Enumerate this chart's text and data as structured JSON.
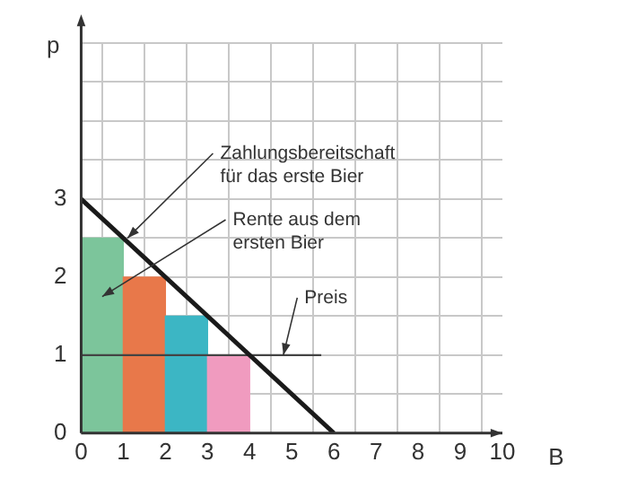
{
  "chart_data": {
    "type": "bar",
    "xlabel": "B",
    "ylabel": "p",
    "xlim": [
      0,
      10
    ],
    "xticks": [
      0,
      1,
      2,
      3,
      4,
      5,
      6,
      7,
      8,
      9,
      10
    ],
    "ylim": [
      0,
      5
    ],
    "yticks": [
      0,
      {
        "value": 0.5,
        "label": null
      },
      1,
      {
        "value": 1.5,
        "label": null
      },
      2,
      {
        "value": 2.5,
        "label": null
      },
      3,
      {
        "value": 3.5,
        "label": null
      },
      {
        "value": 4,
        "label": null
      },
      {
        "value": 4.5,
        "label": null
      },
      {
        "value": 5,
        "label": null
      }
    ],
    "grid": true,
    "legend": false,
    "series": [
      {
        "x": [
          0.5,
          1.5,
          2.5,
          3.5
        ],
        "values": [
          2.5,
          2,
          1.5,
          1
        ],
        "colors": [
          "#7cc59b",
          "#e8784a",
          "#3cb6c4",
          "#f09bbf"
        ]
      },
      {
        "type": "line",
        "x": [
          0,
          6
        ],
        "values": [
          3,
          0
        ],
        "color": "#1a1a1a"
      },
      {
        "type": "line",
        "x": [
          0,
          5.7
        ],
        "values": [
          1,
          1
        ],
        "color": "#444444"
      }
    ],
    "annotations": [
      {
        "text": "Zahlungsbereitschaft für das erste Bier",
        "x": 1.1,
        "y": 2.5
      },
      "Rente aus dem ersten Bier",
      {
        "text": "Preis",
        "x": 4.8,
        "y": 1
      }
    ]
  }
}
